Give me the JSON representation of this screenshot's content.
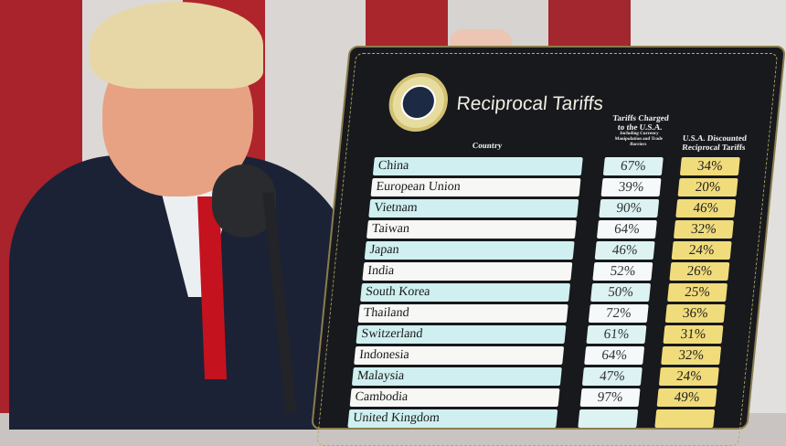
{
  "board": {
    "title": "Reciprocal Tariffs",
    "columns": {
      "country": "Country",
      "charged": "Tariffs Charged to the U.S.A.",
      "charged_sub": "Including Currency Manipulation and Trade Barriers",
      "discounted": "U.S.A. Discounted Reciprocal Tariffs"
    },
    "rows": [
      {
        "country": "China",
        "charged": "67%",
        "discounted": "34%"
      },
      {
        "country": "European Union",
        "charged": "39%",
        "discounted": "20%"
      },
      {
        "country": "Vietnam",
        "charged": "90%",
        "discounted": "46%"
      },
      {
        "country": "Taiwan",
        "charged": "64%",
        "discounted": "32%"
      },
      {
        "country": "Japan",
        "charged": "46%",
        "discounted": "24%"
      },
      {
        "country": "India",
        "charged": "52%",
        "discounted": "26%"
      },
      {
        "country": "South Korea",
        "charged": "50%",
        "discounted": "25%"
      },
      {
        "country": "Thailand",
        "charged": "72%",
        "discounted": "36%"
      },
      {
        "country": "Switzerland",
        "charged": "61%",
        "discounted": "31%"
      },
      {
        "country": "Indonesia",
        "charged": "64%",
        "discounted": "32%"
      },
      {
        "country": "Malaysia",
        "charged": "47%",
        "discounted": "24%"
      },
      {
        "country": "Cambodia",
        "charged": "97%",
        "discounted": "49%"
      },
      {
        "country": "United Kingdom",
        "charged": "",
        "discounted": ""
      }
    ]
  },
  "colors": {
    "flag_red": "#b0242c",
    "board": "#17191c",
    "highlight": "#f1dc7c",
    "teal_row": "#cfeff0"
  }
}
